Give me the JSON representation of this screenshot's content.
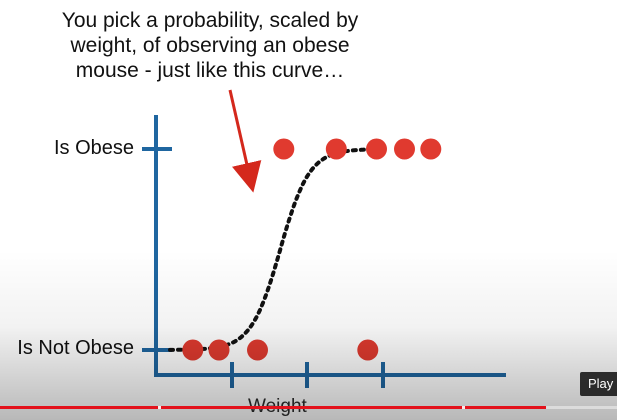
{
  "caption": {
    "line1": "You pick a probability, scaled by",
    "line2": "weight, of observing an obese",
    "line3": "mouse - just like this curve…"
  },
  "chart_data": {
    "type": "scatter",
    "title": "",
    "xlabel": "Weight",
    "ylabel": "",
    "y_tick_labels": [
      "Is Not Obese",
      "Is Obese"
    ],
    "ylim": [
      0,
      1
    ],
    "xlim": [
      0,
      1
    ],
    "points": [
      {
        "x": 0.105,
        "y": 0
      },
      {
        "x": 0.18,
        "y": 0
      },
      {
        "x": 0.29,
        "y": 0
      },
      {
        "x": 0.605,
        "y": 0
      },
      {
        "x": 0.365,
        "y": 1
      },
      {
        "x": 0.515,
        "y": 1
      },
      {
        "x": 0.63,
        "y": 1
      },
      {
        "x": 0.71,
        "y": 1
      },
      {
        "x": 0.785,
        "y": 1
      }
    ],
    "curve": "logistic",
    "point_color": "#e03a2f",
    "axis_color": "#1f66a0",
    "curve_color": "#111111"
  },
  "player": {
    "play_label": "Play",
    "progress": 0.885,
    "progress_color": "#e3111b"
  }
}
